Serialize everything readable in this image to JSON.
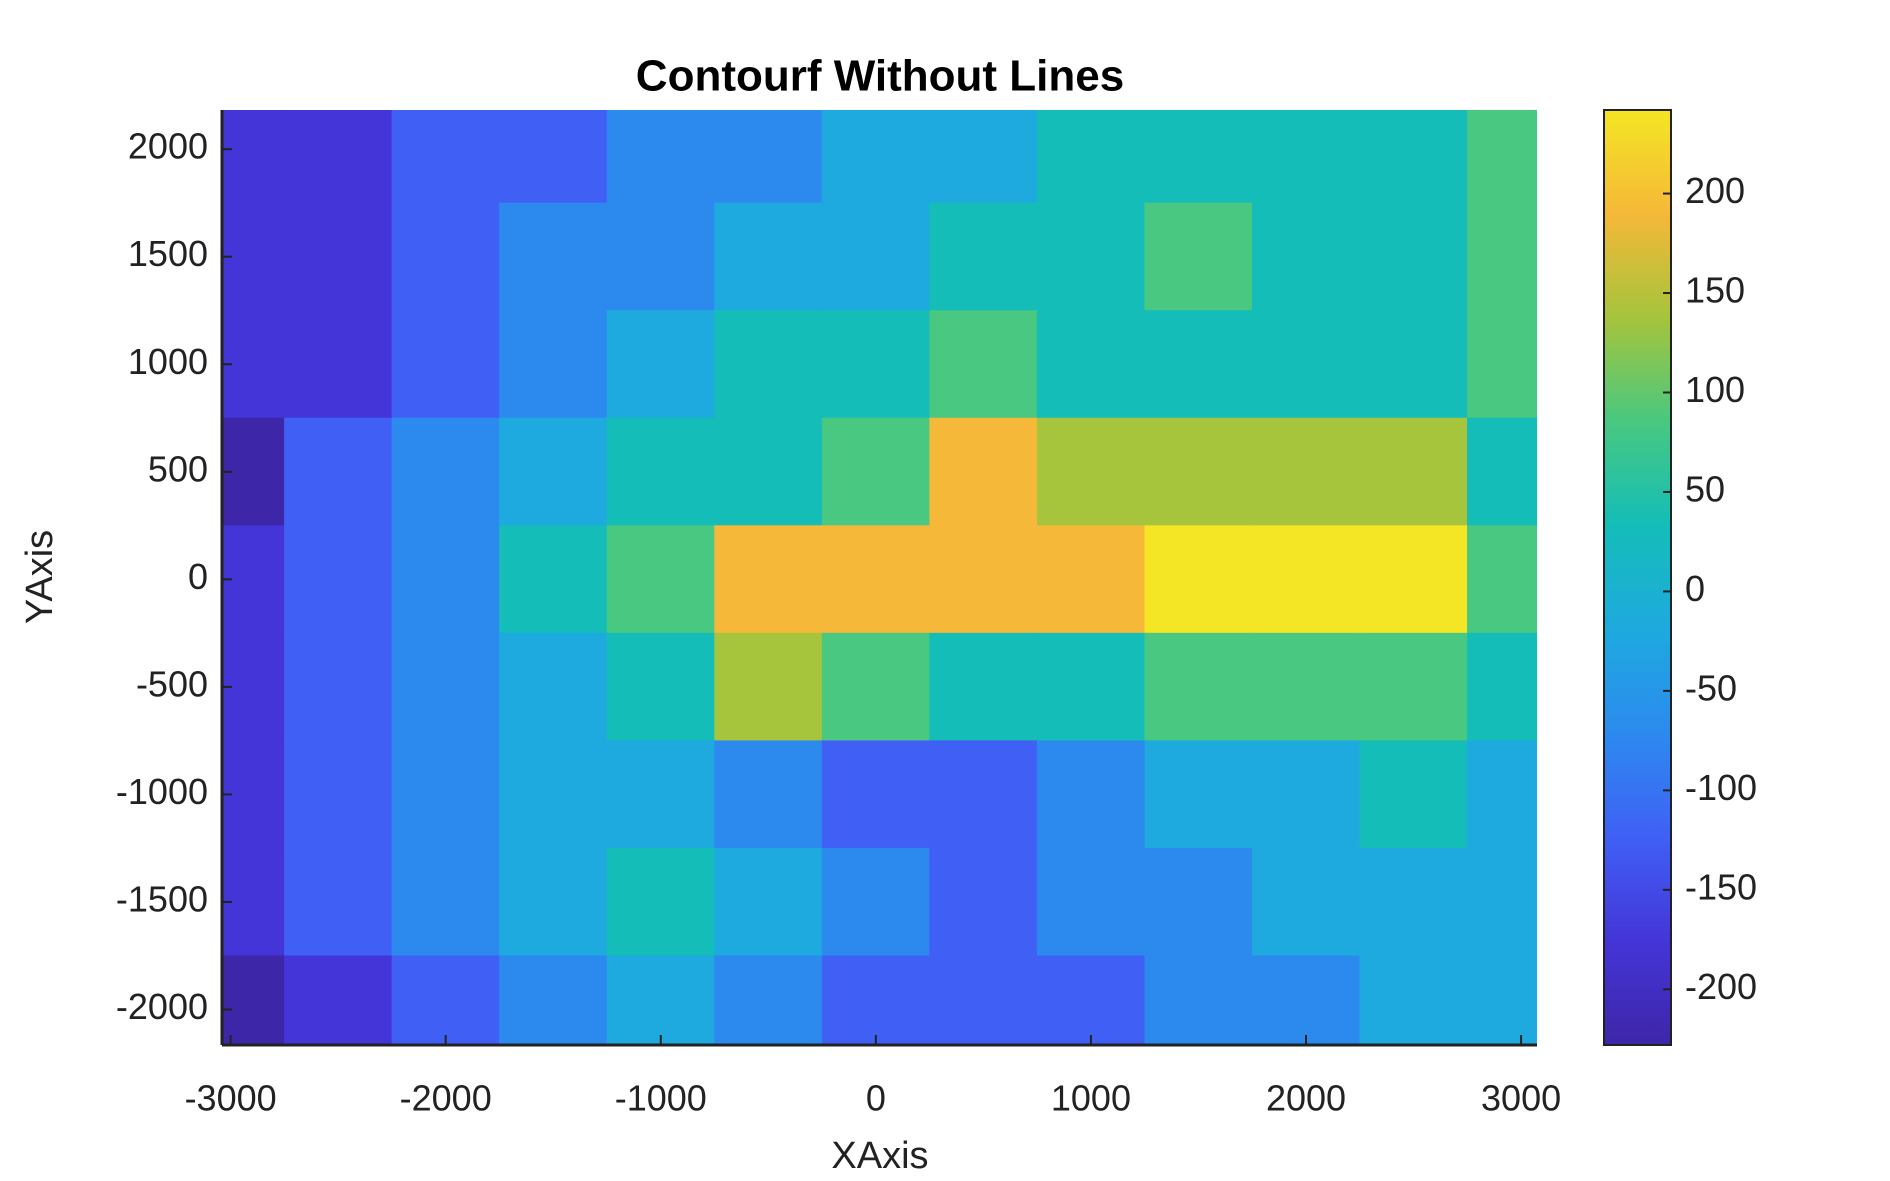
{
  "chart_data": {
    "type": "contourf",
    "title": "Contourf Without Lines",
    "x_label": "XAxis",
    "y_label": "YAxis",
    "x": [
      -3000,
      -2500,
      -2000,
      -1500,
      -1000,
      -500,
      0,
      500,
      1000,
      1500,
      2000,
      2500,
      3000
    ],
    "y": [
      2000,
      1500,
      1000,
      500,
      0,
      -500,
      -1000,
      -1500,
      -2000
    ],
    "z": [
      [
        -190,
        -180,
        -140,
        -110,
        -80,
        -60,
        -40,
        -20,
        0,
        10,
        20,
        30,
        50
      ],
      [
        -200,
        -170,
        -130,
        -90,
        -60,
        -40,
        -10,
        10,
        20,
        80,
        30,
        10,
        50
      ],
      [
        -190,
        -160,
        -120,
        -70,
        -30,
        0,
        10,
        60,
        30,
        20,
        10,
        20,
        50
      ],
      [
        -210,
        -150,
        -100,
        -50,
        0,
        30,
        80,
        150,
        130,
        100,
        110,
        130,
        40
      ],
      [
        -200,
        -140,
        -80,
        0,
        80,
        160,
        170,
        190,
        190,
        200,
        220,
        200,
        60
      ],
      [
        -160,
        -140,
        -90,
        -30,
        40,
        100,
        60,
        40,
        30,
        50,
        80,
        60,
        30
      ],
      [
        -170,
        -130,
        -80,
        -50,
        -40,
        -60,
        -110,
        -120,
        -70,
        -50,
        -20,
        10,
        -10
      ],
      [
        -180,
        -130,
        -70,
        -40,
        10,
        -20,
        -100,
        -120,
        -60,
        -60,
        -50,
        -40,
        -30
      ],
      [
        -220,
        -160,
        -110,
        -60,
        -50,
        -90,
        -110,
        -120,
        -130,
        -80,
        -70,
        -50,
        -40
      ]
    ],
    "levels": [
      -250,
      -200,
      -150,
      -100,
      -50,
      0,
      50,
      100,
      150,
      200,
      250
    ],
    "colormap": [
      "#3e26a8",
      "#4435d8",
      "#4060f5",
      "#2c8aef",
      "#1eaade",
      "#14bdb8",
      "#48c880",
      "#a6c43c",
      "#f5b838",
      "#f4e624"
    ],
    "xlim": [
      -3040,
      3074
    ],
    "ylim": [
      -2165,
      2182
    ],
    "xticks": [
      -3000,
      -2000,
      -1000,
      0,
      1000,
      2000,
      3000
    ],
    "yticks": [
      -2000,
      -1500,
      -1000,
      -500,
      0,
      500,
      1000,
      1500,
      2000
    ],
    "clim": [
      -228,
      242
    ],
    "cticks": [
      -200,
      -150,
      -100,
      -50,
      0,
      50,
      100,
      150,
      200
    ]
  }
}
